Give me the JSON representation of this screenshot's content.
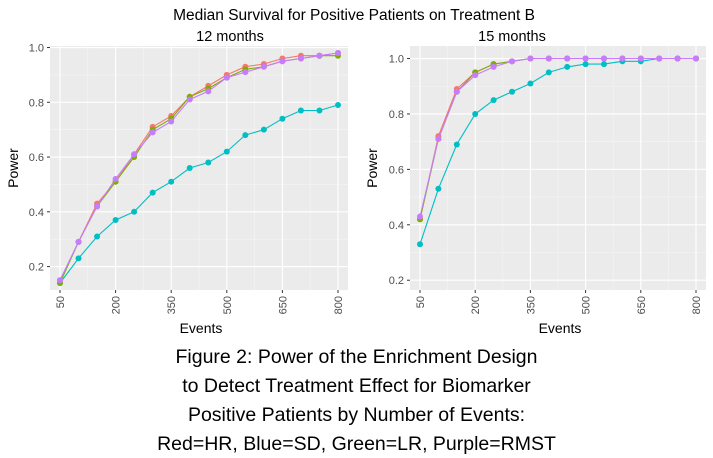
{
  "figure_title": "Median Survival for Positive Patients on Treatment B",
  "caption": [
    "Figure 2: Power of the Enrichment Design",
    "to Detect Treatment Effect for Biomarker",
    "Positive Patients by Number of Events:",
    "Red=HR, Blue=SD, Green=LR, Purple=RMST"
  ],
  "colors": {
    "HR": "#F8766D",
    "LR": "#7CAE00",
    "SD": "#00BFC4",
    "RMST": "#C77CFF",
    "panel_bg": "#EBEBEB",
    "grid": "#FFFFFF"
  },
  "chart_data": [
    {
      "type": "line",
      "title": "12 months",
      "xlabel": "Events",
      "ylabel": "Power",
      "xlim": [
        50,
        800
      ],
      "ylim": [
        0.14,
        0.98
      ],
      "x_ticks": [
        50,
        200,
        350,
        500,
        650,
        800
      ],
      "x_tick_labels": [
        "50",
        "200",
        "350",
        "500",
        "650",
        "800"
      ],
      "y_ticks": [
        0.2,
        0.4,
        0.6,
        0.8,
        1.0
      ],
      "y_tick_labels": [
        "0.2",
        "0.4",
        "0.6",
        "0.8",
        "1.0"
      ],
      "x": [
        50,
        100,
        150,
        200,
        250,
        300,
        350,
        400,
        450,
        500,
        550,
        600,
        650,
        700,
        750,
        800
      ],
      "series": [
        {
          "name": "HR",
          "color": "#F8766D",
          "values": [
            0.15,
            0.29,
            0.43,
            0.51,
            0.61,
            0.71,
            0.75,
            0.82,
            0.86,
            0.9,
            0.93,
            0.94,
            0.96,
            0.97,
            0.97,
            0.98
          ]
        },
        {
          "name": "LR",
          "color": "#7CAE00",
          "values": [
            0.14,
            0.29,
            0.42,
            0.51,
            0.6,
            0.7,
            0.74,
            0.82,
            0.85,
            0.89,
            0.92,
            0.93,
            0.95,
            0.96,
            0.97,
            0.97
          ]
        },
        {
          "name": "RMST",
          "color": "#C77CFF",
          "values": [
            0.15,
            0.29,
            0.42,
            0.52,
            0.61,
            0.69,
            0.73,
            0.81,
            0.84,
            0.89,
            0.91,
            0.93,
            0.95,
            0.96,
            0.97,
            0.98
          ]
        },
        {
          "name": "SD",
          "color": "#00BFC4",
          "values": [
            0.14,
            0.23,
            0.31,
            0.37,
            0.4,
            0.47,
            0.51,
            0.56,
            0.58,
            0.62,
            0.68,
            0.7,
            0.74,
            0.77,
            0.77,
            0.79
          ]
        }
      ]
    },
    {
      "type": "line",
      "title": "15 months",
      "xlabel": "Events",
      "ylabel": "Power",
      "xlim": [
        50,
        800
      ],
      "ylim": [
        0.19,
        1.02
      ],
      "x_ticks": [
        50,
        200,
        350,
        500,
        650,
        800
      ],
      "x_tick_labels": [
        "50",
        "200",
        "350",
        "500",
        "650",
        "800"
      ],
      "y_ticks": [
        0.2,
        0.4,
        0.6,
        0.8,
        1.0
      ],
      "y_tick_labels": [
        "0.2",
        "0.4",
        "0.6",
        "0.8",
        "1.0"
      ],
      "x": [
        50,
        100,
        150,
        200,
        250,
        300,
        350,
        400,
        450,
        500,
        550,
        600,
        650,
        700,
        750,
        800
      ],
      "series": [
        {
          "name": "HR",
          "color": "#F8766D",
          "values": [
            0.42,
            0.72,
            0.89,
            0.95,
            0.98,
            0.99,
            1.0,
            1.0,
            1.0,
            1.0,
            1.0,
            1.0,
            1.0,
            1.0,
            1.0,
            1.0
          ]
        },
        {
          "name": "LR",
          "color": "#7CAE00",
          "values": [
            0.42,
            0.71,
            0.88,
            0.95,
            0.98,
            0.99,
            1.0,
            1.0,
            1.0,
            1.0,
            1.0,
            1.0,
            1.0,
            1.0,
            1.0,
            1.0
          ]
        },
        {
          "name": "RMST",
          "color": "#C77CFF",
          "values": [
            0.43,
            0.71,
            0.88,
            0.94,
            0.97,
            0.99,
            1.0,
            1.0,
            1.0,
            1.0,
            1.0,
            1.0,
            1.0,
            1.0,
            1.0,
            1.0
          ]
        },
        {
          "name": "SD",
          "color": "#00BFC4",
          "values": [
            0.33,
            0.53,
            0.69,
            0.8,
            0.85,
            0.88,
            0.91,
            0.95,
            0.97,
            0.98,
            0.98,
            0.99,
            0.99,
            1.0,
            1.0,
            1.0
          ]
        }
      ]
    }
  ]
}
